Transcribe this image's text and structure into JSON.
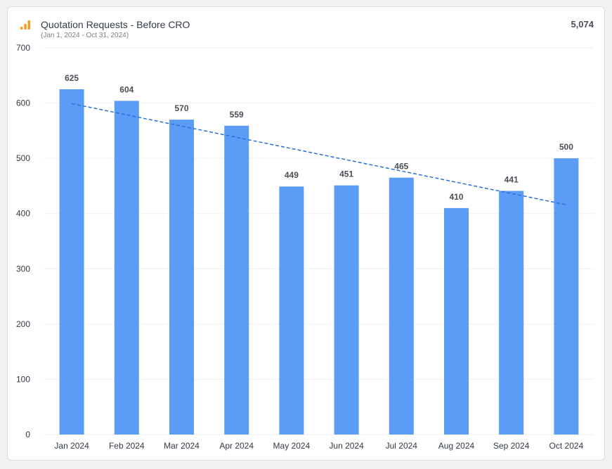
{
  "header": {
    "title": "Quotation Requests - Before CRO",
    "subtitle": "(Jan 1, 2024 - Oct 31, 2024)",
    "total": "5,074",
    "icon": "bar-chart-icon"
  },
  "colors": {
    "bar": "#5b9cf6",
    "trend": "#2a6fd6",
    "icon": "#f29d1f",
    "grid": "#eef0f2"
  },
  "chart_data": {
    "type": "bar",
    "title": "Quotation Requests - Before CRO",
    "subtitle": "(Jan 1, 2024 - Oct 31, 2024)",
    "xlabel": "",
    "ylabel": "",
    "ylim": [
      0,
      700
    ],
    "yticks": [
      0,
      100,
      200,
      300,
      400,
      500,
      600,
      700
    ],
    "grid": true,
    "categories": [
      "Jan 2024",
      "Feb 2024",
      "Mar 2024",
      "Apr 2024",
      "May 2024",
      "Jun 2024",
      "Jul 2024",
      "Aug 2024",
      "Sep 2024",
      "Oct 2024"
    ],
    "values": [
      625,
      604,
      570,
      559,
      449,
      451,
      465,
      410,
      441,
      500
    ],
    "trendline": {
      "type": "linear",
      "style": "dashed",
      "start": 599,
      "end": 416
    }
  }
}
